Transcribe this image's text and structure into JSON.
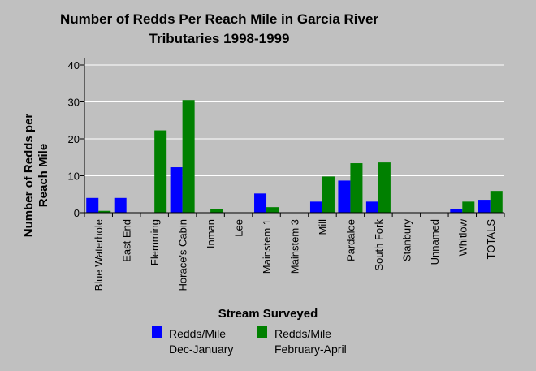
{
  "chart_data": {
    "type": "bar",
    "title": [
      "Number of Redds Per Reach Mile in Garcia River",
      "Tributaries 1998-1999"
    ],
    "xlabel": "Stream Surveyed",
    "ylabel": [
      "Number of Redds per",
      "Reach Mile"
    ],
    "ylim": [
      0,
      40
    ],
    "yticks": [
      0,
      10,
      20,
      30,
      40
    ],
    "grid": true,
    "legend_position": "bottom",
    "categories": [
      "Blue Waterhole",
      "East End",
      "Flemming",
      "Horace's Cabin",
      "Inman",
      "Lee",
      "Mainstem 1",
      "Mainstem 3",
      "Mill",
      "Pardaloe",
      "South Fork",
      "Stanbury",
      "Unnamed",
      "Whitlow",
      "TOTALS"
    ],
    "series": [
      {
        "name": [
          "Redds/Mile",
          "Dec-January"
        ],
        "color": "#0000ff",
        "values": [
          4.0,
          4.0,
          0,
          12.3,
          0,
          0,
          5.2,
          0,
          3.0,
          8.7,
          3.0,
          0,
          0,
          1.0,
          3.5
        ]
      },
      {
        "name": [
          "Redds/Mile",
          "February-April"
        ],
        "color": "#008000",
        "values": [
          0.5,
          0,
          22.3,
          30.5,
          1.0,
          0,
          1.5,
          0,
          9.8,
          13.4,
          13.6,
          0,
          0,
          3.0,
          5.9
        ]
      }
    ]
  }
}
